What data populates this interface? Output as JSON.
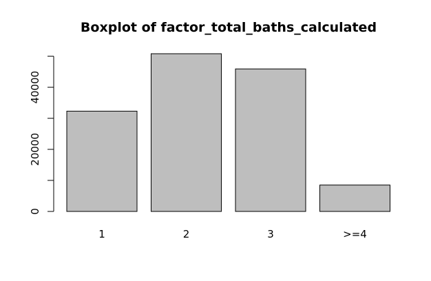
{
  "chart_data": {
    "type": "bar",
    "title": "Boxplot of factor_total_baths_calculated",
    "xlabel": "",
    "ylabel": "",
    "categories": [
      "1",
      "2",
      "3",
      ">=4"
    ],
    "values": [
      32300,
      50800,
      45900,
      8500
    ],
    "ylim": [
      0,
      50800
    ],
    "yticks": [
      0,
      20000,
      40000
    ],
    "yticks_minor": [
      10000,
      30000,
      50000
    ],
    "grid": false,
    "legend": "none",
    "colors": {
      "bar_fill": "#bebebe",
      "bar_stroke": "#000000"
    }
  }
}
